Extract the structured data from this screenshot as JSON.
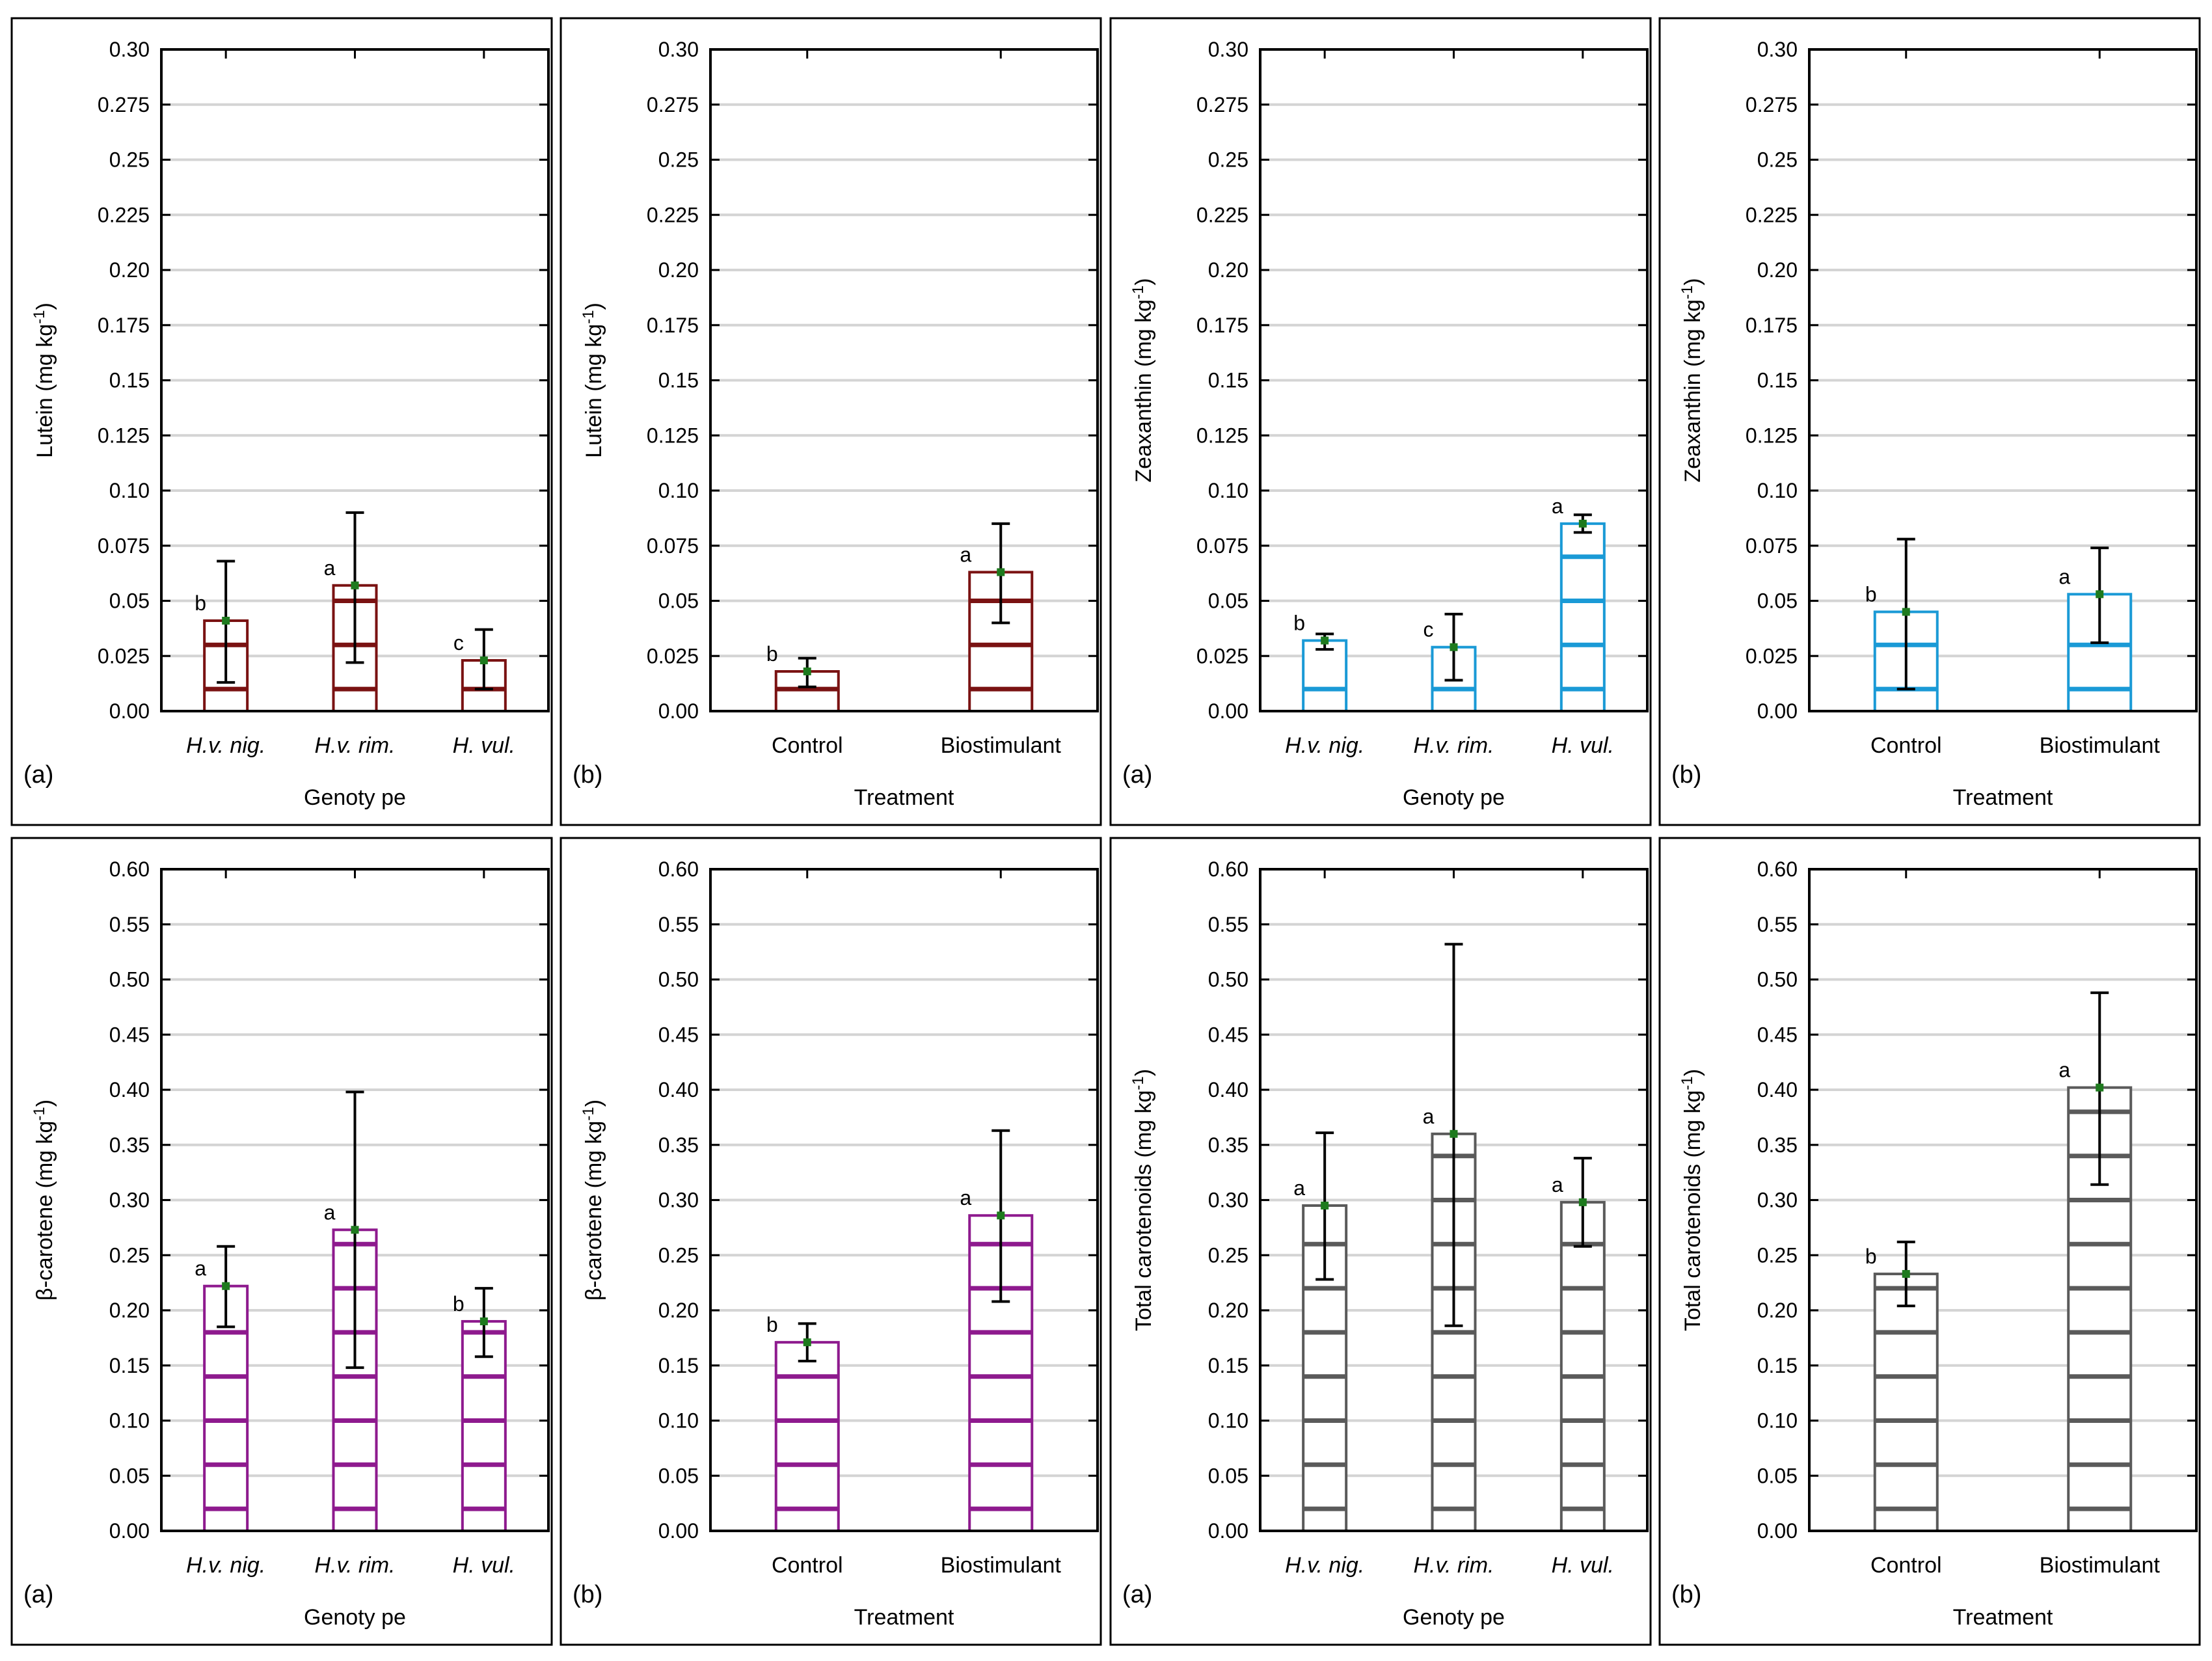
{
  "chart_data": [
    {
      "type": "bar",
      "panel_label": "(a)",
      "xlabel": "Genoty pe",
      "ylabel_main": "Lutein (mg kg",
      "ylabel_sup": "-1",
      "ylabel_tail": ")",
      "categories": [
        "H.v. nig.",
        "H.v. rim.",
        "H. vul."
      ],
      "category_italic": true,
      "values": [
        0.041,
        0.057,
        0.023
      ],
      "errors": [
        [
          0.013,
          0.068
        ],
        [
          0.022,
          0.09
        ],
        [
          0.01,
          0.037
        ]
      ],
      "letters": [
        "b",
        "a",
        "c"
      ],
      "ylim": [
        0,
        0.3
      ],
      "yticks": [
        "0.00",
        "0.025",
        "0.05",
        "0.075",
        "0.10",
        "0.125",
        "0.15",
        "0.175",
        "0.20",
        "0.225",
        "0.25",
        "0.275",
        "0.30"
      ],
      "grid": true,
      "color": "#7a1212"
    },
    {
      "type": "bar",
      "panel_label": "(b)",
      "xlabel": "Treatment",
      "ylabel_main": "Lutein (mg kg",
      "ylabel_sup": "-1",
      "ylabel_tail": ")",
      "categories": [
        "Control",
        "Biostimulant"
      ],
      "category_italic": false,
      "values": [
        0.018,
        0.063
      ],
      "errors": [
        [
          0.011,
          0.024
        ],
        [
          0.04,
          0.085
        ]
      ],
      "letters": [
        "b",
        "a"
      ],
      "ylim": [
        0,
        0.3
      ],
      "yticks": [
        "0.00",
        "0.025",
        "0.05",
        "0.075",
        "0.10",
        "0.125",
        "0.15",
        "0.175",
        "0.20",
        "0.225",
        "0.25",
        "0.275",
        "0.30"
      ],
      "grid": true,
      "color": "#7a1212"
    },
    {
      "type": "bar",
      "panel_label": "(a)",
      "xlabel": "Genoty pe",
      "ylabel_main": "Zeaxanthin (mg kg",
      "ylabel_sup": "-1",
      "ylabel_tail": ")",
      "categories": [
        "H.v. nig.",
        "H.v. rim.",
        "H. vul."
      ],
      "category_italic": true,
      "values": [
        0.032,
        0.029,
        0.085
      ],
      "errors": [
        [
          0.028,
          0.035
        ],
        [
          0.014,
          0.044
        ],
        [
          0.081,
          0.089
        ]
      ],
      "letters": [
        "b",
        "c",
        "a"
      ],
      "ylim": [
        0,
        0.3
      ],
      "yticks": [
        "0.00",
        "0.025",
        "0.05",
        "0.075",
        "0.10",
        "0.125",
        "0.15",
        "0.175",
        "0.20",
        "0.225",
        "0.25",
        "0.275",
        "0.30"
      ],
      "grid": true,
      "color": "#1a9ad6"
    },
    {
      "type": "bar",
      "panel_label": "(b)",
      "xlabel": "Treatment",
      "ylabel_main": "Zeaxanthin (mg kg",
      "ylabel_sup": "-1",
      "ylabel_tail": ")",
      "categories": [
        "Control",
        "Biostimulant"
      ],
      "category_italic": false,
      "values": [
        0.045,
        0.053
      ],
      "errors": [
        [
          0.01,
          0.078
        ],
        [
          0.031,
          0.074
        ]
      ],
      "letters": [
        "b",
        "a"
      ],
      "ylim": [
        0,
        0.3
      ],
      "yticks": [
        "0.00",
        "0.025",
        "0.05",
        "0.075",
        "0.10",
        "0.125",
        "0.15",
        "0.175",
        "0.20",
        "0.225",
        "0.25",
        "0.275",
        "0.30"
      ],
      "grid": true,
      "color": "#1a9ad6"
    },
    {
      "type": "bar",
      "panel_label": "(a)",
      "xlabel": "Genoty pe",
      "ylabel_main": "β-carotene (mg kg",
      "ylabel_sup": "-1",
      "ylabel_tail": ")",
      "categories": [
        "H.v. nig.",
        "H.v. rim.",
        "H. vul."
      ],
      "category_italic": true,
      "values": [
        0.222,
        0.273,
        0.19
      ],
      "errors": [
        [
          0.185,
          0.258
        ],
        [
          0.148,
          0.398
        ],
        [
          0.158,
          0.22
        ]
      ],
      "letters": [
        "a",
        "a",
        "b"
      ],
      "ylim": [
        0,
        0.6
      ],
      "yticks": [
        "0.00",
        "0.05",
        "0.10",
        "0.15",
        "0.20",
        "0.25",
        "0.30",
        "0.35",
        "0.40",
        "0.45",
        "0.50",
        "0.55",
        "0.60"
      ],
      "grid": true,
      "color": "#8e1a8e"
    },
    {
      "type": "bar",
      "panel_label": "(b)",
      "xlabel": "Treatment",
      "ylabel_main": "β-carotene (mg kg",
      "ylabel_sup": "-1",
      "ylabel_tail": ")",
      "categories": [
        "Control",
        "Biostimulant"
      ],
      "category_italic": false,
      "values": [
        0.171,
        0.286
      ],
      "errors": [
        [
          0.154,
          0.188
        ],
        [
          0.208,
          0.363
        ]
      ],
      "letters": [
        "b",
        "a"
      ],
      "ylim": [
        0,
        0.6
      ],
      "yticks": [
        "0.00",
        "0.05",
        "0.10",
        "0.15",
        "0.20",
        "0.25",
        "0.30",
        "0.35",
        "0.40",
        "0.45",
        "0.50",
        "0.55",
        "0.60"
      ],
      "grid": true,
      "color": "#8e1a8e"
    },
    {
      "type": "bar",
      "panel_label": "(a)",
      "xlabel": "Genoty pe",
      "ylabel_main": "Total carotenoids (mg kg",
      "ylabel_sup": "-1",
      "ylabel_tail": ")",
      "categories": [
        "H.v. nig.",
        "H.v. rim.",
        "H. vul."
      ],
      "category_italic": true,
      "values": [
        0.295,
        0.36,
        0.298
      ],
      "errors": [
        [
          0.228,
          0.361
        ],
        [
          0.186,
          0.532
        ],
        [
          0.258,
          0.338
        ]
      ],
      "letters": [
        "a",
        "a",
        "a"
      ],
      "ylim": [
        0,
        0.6
      ],
      "yticks": [
        "0.00",
        "0.05",
        "0.10",
        "0.15",
        "0.20",
        "0.25",
        "0.30",
        "0.35",
        "0.40",
        "0.45",
        "0.50",
        "0.55",
        "0.60"
      ],
      "grid": true,
      "color": "#5a5a5a"
    },
    {
      "type": "bar",
      "panel_label": "(b)",
      "xlabel": "Treatment",
      "ylabel_main": "Total carotenoids (mg kg",
      "ylabel_sup": "-1",
      "ylabel_tail": ")",
      "categories": [
        "Control",
        "Biostimulant"
      ],
      "category_italic": false,
      "values": [
        0.233,
        0.402
      ],
      "errors": [
        [
          0.204,
          0.262
        ],
        [
          0.314,
          0.488
        ]
      ],
      "letters": [
        "b",
        "a"
      ],
      "ylim": [
        0,
        0.6
      ],
      "yticks": [
        "0.00",
        "0.05",
        "0.10",
        "0.15",
        "0.20",
        "0.25",
        "0.30",
        "0.35",
        "0.40",
        "0.45",
        "0.50",
        "0.55",
        "0.60"
      ],
      "grid": true,
      "color": "#5a5a5a"
    }
  ],
  "colors": {
    "mean_marker": "#1e7a1e",
    "gridline": "#d4d4d4",
    "frame": "#000000"
  }
}
